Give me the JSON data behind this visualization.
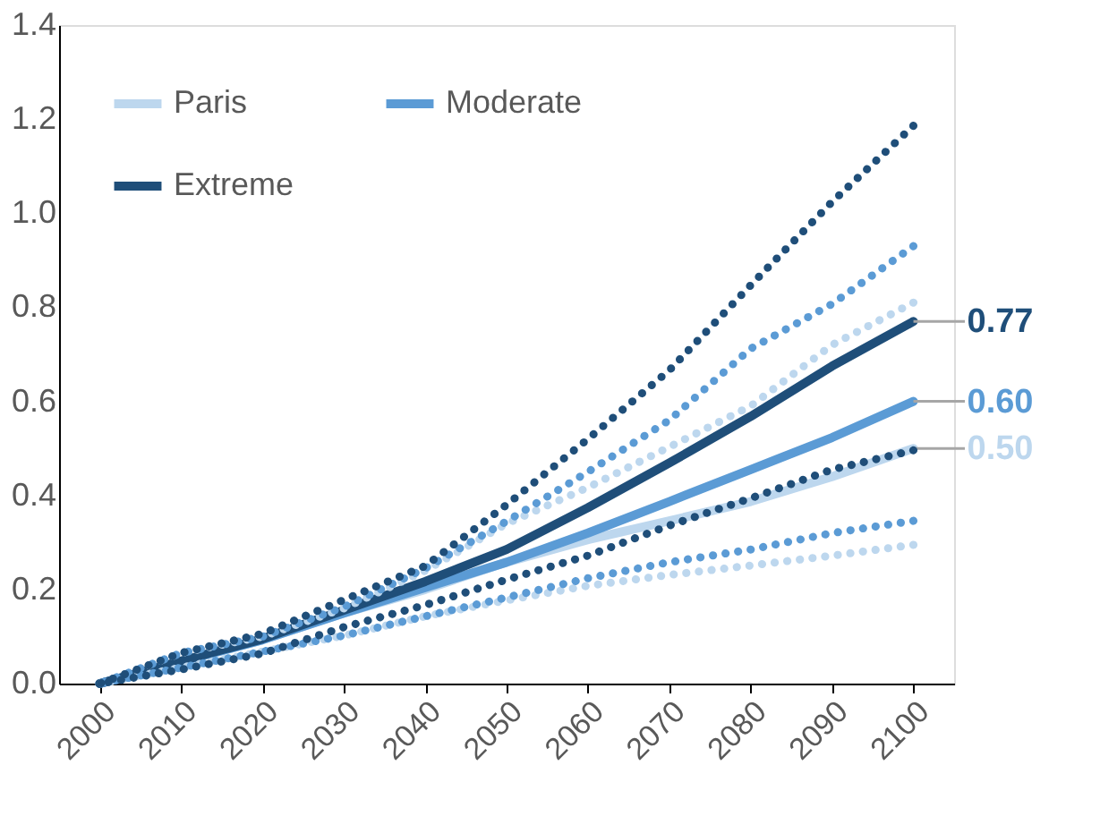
{
  "chart_data": {
    "type": "line",
    "x": [
      2000,
      2010,
      2020,
      2030,
      2040,
      2050,
      2060,
      2070,
      2080,
      2090,
      2100
    ],
    "series": [
      {
        "name": "Paris",
        "color": "#bdd7ee",
        "line_style": "solid",
        "values": [
          0,
          0.047,
          0.093,
          0.15,
          0.2,
          0.258,
          0.306,
          0.346,
          0.387,
          0.44,
          0.5
        ],
        "value_labels": [
          null,
          null,
          null,
          null,
          null,
          null,
          null,
          null,
          null,
          null,
          "0.50"
        ]
      },
      {
        "name": "Moderate",
        "color": "#5b9bd5",
        "line_style": "solid",
        "values": [
          0,
          0.047,
          0.093,
          0.15,
          0.204,
          0.258,
          0.32,
          0.387,
          0.455,
          0.523,
          0.6
        ],
        "value_labels": [
          null,
          null,
          null,
          null,
          null,
          null,
          null,
          null,
          null,
          null,
          "0.60"
        ]
      },
      {
        "name": "Extreme",
        "color": "#1f4e79",
        "line_style": "solid",
        "values": [
          0,
          0.048,
          0.095,
          0.156,
          0.217,
          0.285,
          0.374,
          0.469,
          0.568,
          0.675,
          0.77
        ],
        "value_labels": [
          null,
          null,
          null,
          null,
          null,
          null,
          null,
          null,
          null,
          null,
          "0.77"
        ]
      },
      {
        "color": "#bdd7ee",
        "line_style": "dotted",
        "values": [
          0,
          0.065,
          0.1,
          0.16,
          0.24,
          0.34,
          0.417,
          0.503,
          0.59,
          0.72,
          0.81
        ]
      },
      {
        "color": "#bdd7ee",
        "line_style": "dotted",
        "values": [
          0,
          0.034,
          0.068,
          0.102,
          0.143,
          0.177,
          0.208,
          0.231,
          0.251,
          0.272,
          0.295
        ]
      },
      {
        "color": "#5b9bd5",
        "line_style": "dotted",
        "values": [
          0,
          0.065,
          0.1,
          0.163,
          0.245,
          0.345,
          0.45,
          0.56,
          0.712,
          0.807,
          0.93
        ]
      },
      {
        "color": "#5b9bd5",
        "line_style": "dotted",
        "values": [
          0,
          0.034,
          0.068,
          0.102,
          0.143,
          0.183,
          0.224,
          0.258,
          0.285,
          0.32,
          0.346
        ]
      },
      {
        "color": "#1f4e79",
        "line_style": "dotted",
        "values": [
          0,
          0.065,
          0.106,
          0.178,
          0.25,
          0.38,
          0.52,
          0.666,
          0.847,
          1.024,
          1.186
        ]
      },
      {
        "color": "#1f4e79",
        "line_style": "dotted",
        "values": [
          0,
          0.03,
          0.064,
          0.12,
          0.167,
          0.221,
          0.272,
          0.336,
          0.394,
          0.455,
          0.496
        ]
      }
    ],
    "xlim": [
      1995,
      2105
    ],
    "xticks": [
      2000,
      2010,
      2020,
      2030,
      2040,
      2050,
      2060,
      2070,
      2080,
      2090,
      2100
    ],
    "ylim": [
      0,
      1.4
    ],
    "yticks": [
      {
        "value": 0,
        "label": "0.0"
      },
      0.2,
      0.4,
      0.6,
      0.8,
      {
        "value": 1,
        "label": "1.0"
      },
      1.2,
      1.4
    ],
    "grid": false,
    "legend": "top left",
    "marker": "none"
  }
}
